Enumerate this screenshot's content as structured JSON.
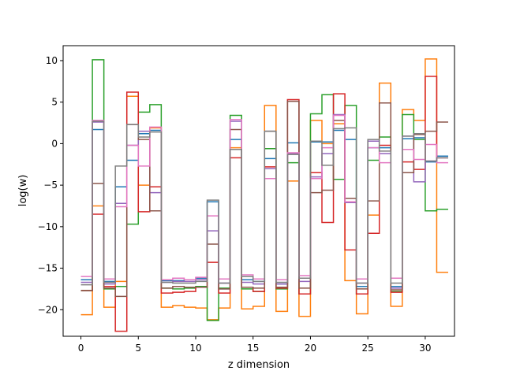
{
  "chart_data": {
    "type": "line",
    "step": "post",
    "title": "",
    "xlabel": "z dimension",
    "ylabel": "log(w)",
    "xlim": [
      -1.55,
      32.55
    ],
    "ylim": [
      -23.2,
      11.8
    ],
    "xticks": [
      0,
      5,
      10,
      15,
      20,
      25,
      30
    ],
    "yticks": [
      -20,
      -15,
      -10,
      -5,
      0,
      5,
      10
    ],
    "x": [
      0,
      1,
      2,
      3,
      4,
      5,
      6,
      7,
      8,
      9,
      10,
      11,
      12,
      13,
      14,
      15,
      16,
      17,
      18,
      19,
      20,
      21,
      22,
      23,
      24,
      25,
      26,
      27,
      28,
      29,
      30,
      31
    ],
    "grid": false,
    "legend": "none",
    "series": [
      {
        "color": "#1f77b4",
        "values": [
          -16.4,
          1.7,
          -16.6,
          -5.2,
          -2.0,
          1.2,
          1.6,
          -16.5,
          -16.5,
          -16.4,
          -16.2,
          -7.0,
          -17.5,
          0.5,
          -16.4,
          -16.6,
          -1.8,
          -16.9,
          0.1,
          -16.2,
          0.2,
          0.2,
          1.6,
          0.5,
          -17.2,
          -0.5,
          -0.5,
          -17.2,
          0.6,
          0.7,
          -2.2,
          -1.5
        ]
      },
      {
        "color": "#ff7f0e",
        "values": [
          -20.6,
          -7.5,
          -19.7,
          -16.6,
          5.7,
          -5.0,
          1.9,
          -19.7,
          -19.5,
          -19.7,
          -19.8,
          -21.2,
          -19.8,
          -0.5,
          -19.9,
          -19.6,
          4.6,
          -20.2,
          -4.5,
          -20.8,
          2.8,
          0.0,
          2.4,
          -16.5,
          -20.5,
          -8.6,
          7.3,
          -19.6,
          4.1,
          2.8,
          10.2,
          -15.5
        ]
      },
      {
        "color": "#2ca02c",
        "values": [
          -17.7,
          10.1,
          -17.5,
          -17.2,
          -9.7,
          3.8,
          4.7,
          -17.4,
          -17.5,
          -17.4,
          -17.2,
          -21.3,
          -17.4,
          3.4,
          -17.5,
          -17.8,
          -0.6,
          -17.5,
          -2.3,
          -18.1,
          3.6,
          5.9,
          -4.3,
          4.6,
          -18.1,
          -2.0,
          0.8,
          -17.8,
          3.5,
          0.5,
          -8.1,
          -7.9
        ]
      },
      {
        "color": "#d62728",
        "values": [
          -17.7,
          -8.5,
          -17.2,
          -22.6,
          6.2,
          -8.2,
          -5.2,
          -18.0,
          -17.9,
          -17.8,
          -17.3,
          -14.3,
          -18.0,
          -1.7,
          -17.3,
          -17.8,
          -2.8,
          -17.4,
          5.3,
          -18.1,
          -3.5,
          -9.5,
          6.0,
          -12.8,
          -18.1,
          -10.8,
          -0.2,
          -17.9,
          -2.2,
          -3.1,
          8.1,
          -1.7
        ]
      },
      {
        "color": "#9467bd",
        "values": [
          -16.7,
          2.6,
          -16.9,
          -7.2,
          -0.2,
          1.5,
          -5.9,
          -16.7,
          -16.6,
          -16.6,
          -16.4,
          -10.5,
          -16.8,
          2.7,
          -16.7,
          -16.9,
          -3.0,
          -16.9,
          -1.2,
          -16.6,
          -4.0,
          -1.2,
          3.5,
          -7.1,
          -16.8,
          0.3,
          -1.2,
          -17.4,
          0.9,
          -4.6,
          -2.1,
          -1.7
        ]
      },
      {
        "color": "#8c564b",
        "values": [
          -17.7,
          -4.8,
          -17.4,
          -18.4,
          2.3,
          0.5,
          -8.1,
          -17.4,
          -17.2,
          -17.3,
          -17.3,
          -12.1,
          -17.5,
          1.7,
          -17.3,
          -17.4,
          1.5,
          -17.3,
          5.1,
          -17.4,
          -5.9,
          -5.6,
          2.8,
          -6.6,
          -17.5,
          -6.9,
          4.9,
          -17.6,
          -3.5,
          1.1,
          1.5,
          2.6
        ]
      },
      {
        "color": "#e377c2",
        "values": [
          -16.0,
          2.8,
          -16.3,
          -7.6,
          -0.2,
          -2.7,
          2.0,
          -16.4,
          -16.2,
          -16.4,
          -16.1,
          -8.7,
          -16.3,
          2.9,
          -15.8,
          -16.3,
          -4.2,
          -16.4,
          -1.1,
          -15.9,
          -4.2,
          -0.5,
          3.4,
          -7.0,
          -16.3,
          -0.5,
          -2.3,
          -16.2,
          -0.7,
          -1.9,
          -0.1,
          -2.3
        ]
      },
      {
        "color": "#7f7f7f",
        "values": [
          -17.0,
          2.7,
          -16.7,
          -2.7,
          2.3,
          0.8,
          1.4,
          -16.7,
          -16.8,
          -16.8,
          -16.6,
          -6.8,
          -16.8,
          -0.7,
          -16.0,
          -16.6,
          1.5,
          -16.7,
          -1.3,
          -16.2,
          0.3,
          -2.6,
          1.8,
          1.9,
          -16.8,
          0.5,
          -0.9,
          -16.8,
          0.9,
          1.2,
          -2.1,
          -1.7
        ]
      }
    ]
  }
}
